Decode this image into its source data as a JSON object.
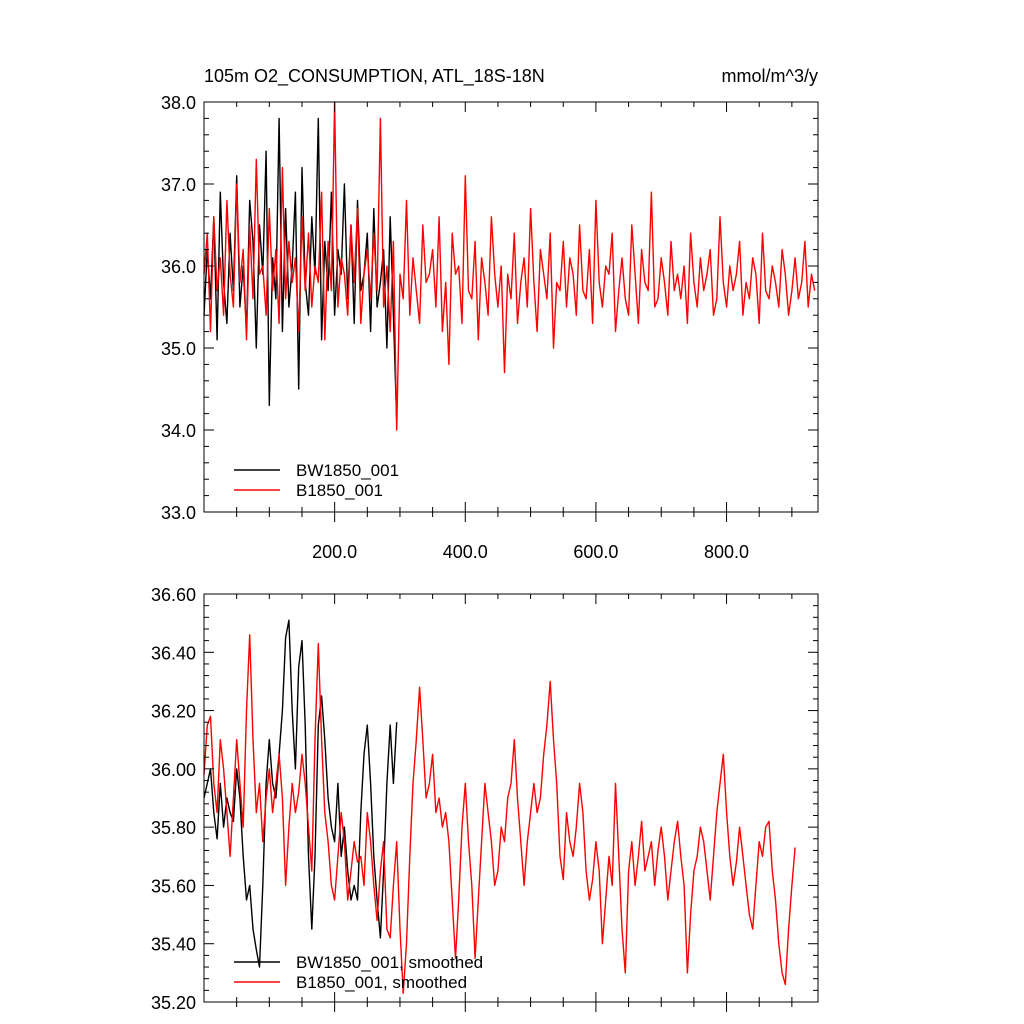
{
  "chart_data": [
    {
      "type": "line",
      "title": "105m O2_CONSUMPTION, ATL_18S-18N",
      "units": "mmol/m^3/y",
      "xlim": [
        0,
        940
      ],
      "ylim": [
        33.0,
        38.0
      ],
      "x_ticks": [
        200,
        400,
        600,
        800
      ],
      "x_tick_labels": [
        "200.0",
        "400.0",
        "600.0",
        "800.0"
      ],
      "y_ticks": [
        33.0,
        34.0,
        35.0,
        36.0,
        37.0,
        38.0
      ],
      "y_tick_labels": [
        "33.0",
        "34.0",
        "35.0",
        "36.0",
        "37.0",
        "38.0"
      ],
      "legend_position": "bottom-left",
      "series": [
        {
          "name": "BW1850_001",
          "color": "#000000",
          "x_start": 0,
          "x_step": 5,
          "values": [
            35.4,
            36.2,
            35.6,
            36.6,
            35.1,
            36.9,
            35.8,
            35.3,
            36.4,
            35.7,
            37.1,
            35.5,
            36.0,
            35.2,
            36.8,
            36.3,
            35.0,
            36.5,
            35.9,
            37.4,
            34.3,
            36.1,
            35.6,
            37.8,
            35.2,
            36.7,
            35.5,
            36.0,
            36.9,
            34.5,
            37.2,
            35.8,
            35.4,
            36.6,
            35.9,
            37.8,
            35.1,
            36.3,
            35.7,
            36.9,
            35.4,
            36.2,
            35.9,
            37.0,
            35.6,
            36.5,
            35.3,
            36.8,
            35.7,
            35.9,
            36.4,
            35.2,
            36.7,
            35.5,
            35.8,
            36.2,
            35.0,
            36.6,
            35.4,
            34.1
          ]
        },
        {
          "name": "B1850_001",
          "color": "#ff0000",
          "x_start": 0,
          "x_step": 5,
          "values": [
            35.9,
            36.4,
            35.2,
            36.6,
            35.7,
            36.1,
            35.4,
            36.8,
            35.9,
            35.5,
            37.0,
            35.8,
            36.2,
            35.1,
            36.5,
            35.6,
            37.3,
            35.9,
            36.0,
            35.4,
            36.7,
            35.7,
            36.2,
            35.3,
            37.2,
            35.6,
            36.3,
            35.8,
            36.1,
            35.2,
            36.6,
            35.7,
            36.4,
            35.5,
            36.0,
            35.8,
            36.9,
            35.1,
            36.3,
            35.7,
            38.0,
            35.5,
            36.1,
            35.9,
            35.4,
            36.5,
            35.8,
            36.7,
            35.3,
            35.9,
            36.2,
            35.6,
            36.4,
            35.7,
            37.8,
            35.5,
            36.0,
            35.2,
            36.3,
            34.0,
            35.9,
            35.6,
            36.8,
            35.4,
            36.1,
            35.7,
            35.3,
            36.5,
            35.8,
            35.9,
            36.2,
            35.5,
            36.6,
            35.2,
            35.8,
            34.8,
            36.4,
            35.9,
            36.0,
            35.3,
            37.1,
            35.7,
            35.6,
            36.3,
            35.1,
            36.1,
            35.8,
            35.4,
            36.6,
            35.9,
            35.5,
            36.0,
            34.7,
            35.9,
            35.6,
            36.4,
            35.3,
            35.8,
            36.1,
            35.5,
            36.7,
            35.8,
            35.2,
            36.2,
            35.9,
            35.6,
            36.4,
            35.0,
            35.8,
            35.7,
            36.3,
            35.5,
            36.1,
            35.9,
            35.4,
            36.5,
            35.7,
            35.6,
            36.2,
            35.3,
            36.8,
            35.8,
            35.5,
            36.0,
            35.9,
            36.4,
            35.2,
            35.7,
            36.1,
            35.6,
            35.4,
            36.5,
            35.9,
            35.3,
            36.2,
            35.8,
            35.7,
            36.9,
            35.5,
            35.6,
            36.1,
            35.8,
            35.4,
            36.3,
            35.7,
            35.9,
            35.6,
            36.0,
            35.3,
            36.4,
            35.8,
            35.5,
            36.1,
            35.7,
            35.9,
            36.2,
            35.4,
            35.6,
            36.6,
            35.8,
            35.5,
            36.0,
            35.7,
            35.9,
            36.3,
            35.4,
            35.8,
            35.6,
            36.1,
            35.9,
            35.3,
            36.4,
            35.7,
            35.6,
            36.0,
            35.8,
            35.5,
            36.2,
            35.9,
            35.4,
            35.7,
            36.1,
            35.6,
            35.8,
            36.3,
            35.5,
            35.9,
            35.7
          ]
        }
      ]
    },
    {
      "type": "line",
      "xlim": [
        0,
        940
      ],
      "ylim": [
        35.2,
        36.6
      ],
      "y_ticks": [
        35.2,
        35.4,
        35.6,
        35.8,
        36.0,
        36.2,
        36.4,
        36.6
      ],
      "y_tick_labels": [
        "35.20",
        "35.40",
        "35.60",
        "35.80",
        "36.00",
        "36.20",
        "36.40",
        "36.60"
      ],
      "legend_position": "bottom-left",
      "series": [
        {
          "name": "BW1850_001, smoothed",
          "color": "#000000",
          "x_start": 0,
          "x_step": 5,
          "values": [
            35.9,
            35.95,
            36.0,
            35.85,
            35.76,
            35.95,
            35.8,
            35.9,
            35.85,
            35.82,
            36.0,
            35.9,
            35.7,
            35.55,
            35.6,
            35.45,
            35.38,
            35.32,
            35.6,
            35.95,
            36.1,
            35.95,
            35.9,
            36.05,
            36.2,
            36.45,
            36.51,
            36.2,
            36.0,
            36.35,
            36.44,
            36.15,
            35.7,
            35.45,
            35.7,
            36.15,
            36.25,
            36.1,
            35.9,
            35.8,
            35.75,
            35.95,
            35.7,
            35.8,
            35.65,
            35.55,
            35.6,
            35.55,
            35.85,
            36.05,
            36.15,
            35.95,
            35.7,
            35.55,
            35.42,
            35.65,
            35.95,
            36.15,
            35.95,
            36.16
          ]
        },
        {
          "name": "B1850_001, smoothed",
          "color": "#ff0000",
          "x_start": 0,
          "x_step": 5,
          "values": [
            35.98,
            36.15,
            36.18,
            35.95,
            35.85,
            36.1,
            36.0,
            35.85,
            35.7,
            35.9,
            36.1,
            35.95,
            35.8,
            36.2,
            36.46,
            36.1,
            35.85,
            35.95,
            35.75,
            35.9,
            36.0,
            35.85,
            35.95,
            36.05,
            35.9,
            35.6,
            35.8,
            35.95,
            35.85,
            35.92,
            36.05,
            35.95,
            35.8,
            35.65,
            36.1,
            36.43,
            36.1,
            35.85,
            35.75,
            35.6,
            35.55,
            35.7,
            35.85,
            35.75,
            35.55,
            35.65,
            35.75,
            35.68,
            35.7,
            35.6,
            35.85,
            35.75,
            35.6,
            35.48,
            35.65,
            35.75,
            35.45,
            35.42,
            35.6,
            35.75,
            35.45,
            35.23,
            35.4,
            35.7,
            35.95,
            36.1,
            36.28,
            36.1,
            35.9,
            35.95,
            36.05,
            35.85,
            35.9,
            35.8,
            35.85,
            35.75,
            35.55,
            35.35,
            35.55,
            35.8,
            35.95,
            35.75,
            35.6,
            35.35,
            35.55,
            35.75,
            35.95,
            35.85,
            35.75,
            35.6,
            35.65,
            35.8,
            35.75,
            35.9,
            35.95,
            36.1,
            35.9,
            35.75,
            35.6,
            35.75,
            35.85,
            35.95,
            35.85,
            35.9,
            36.05,
            36.15,
            36.3,
            36.1,
            35.95,
            35.7,
            35.62,
            35.85,
            35.75,
            35.7,
            35.8,
            35.95,
            35.85,
            35.65,
            35.55,
            35.62,
            35.75,
            35.65,
            35.4,
            35.55,
            35.7,
            35.6,
            35.95,
            35.7,
            35.45,
            35.3,
            35.65,
            35.75,
            35.6,
            35.7,
            35.82,
            35.65,
            35.7,
            35.75,
            35.6,
            35.72,
            35.8,
            35.7,
            35.55,
            35.65,
            35.75,
            35.82,
            35.7,
            35.6,
            35.3,
            35.5,
            35.65,
            35.7,
            35.8,
            35.75,
            35.65,
            35.55,
            35.7,
            35.85,
            35.95,
            36.05,
            35.85,
            35.7,
            35.6,
            35.68,
            35.8,
            35.7,
            35.6,
            35.5,
            35.45,
            35.6,
            35.75,
            35.7,
            35.8,
            35.82,
            35.65,
            35.55,
            35.4,
            35.3,
            35.26,
            35.45,
            35.6,
            35.73
          ]
        }
      ]
    }
  ]
}
